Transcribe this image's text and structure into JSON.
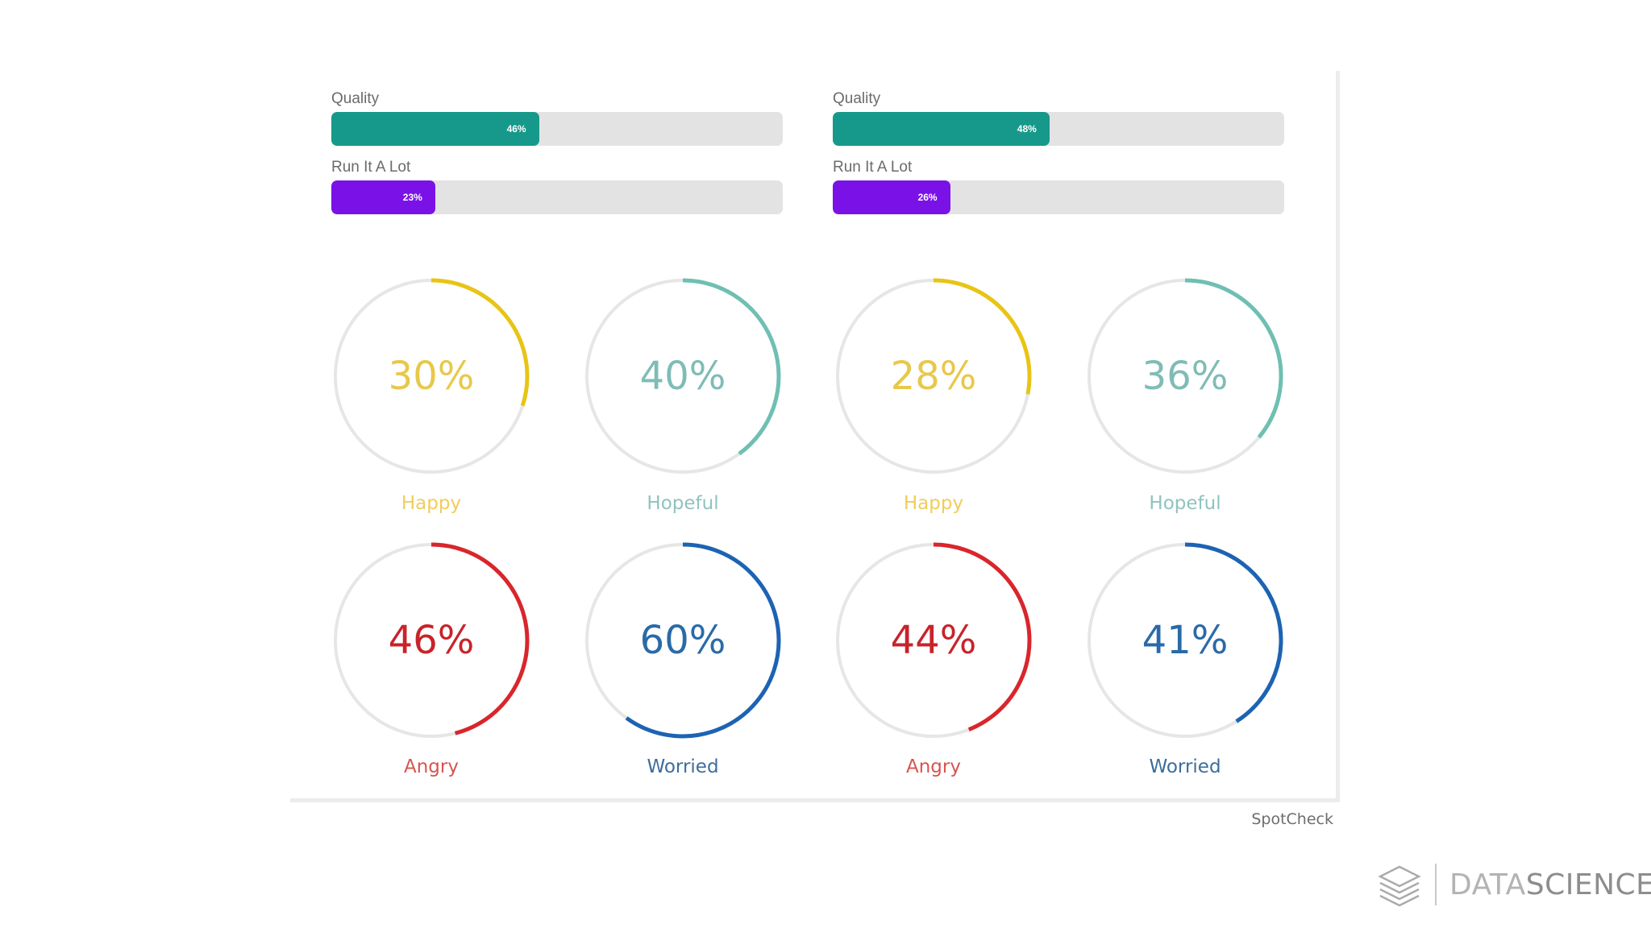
{
  "chart_data": [
    {
      "type": "bar",
      "title": "Quality",
      "value": 46,
      "label": "46%",
      "color": "#16998a"
    },
    {
      "type": "bar",
      "title": "Run It A Lot",
      "value": 23,
      "label": "23%",
      "color": "#7a12e8"
    },
    {
      "type": "bar",
      "title": "Quality",
      "value": 48,
      "label": "48%",
      "color": "#16998a"
    },
    {
      "type": "bar",
      "title": "Run It A Lot",
      "value": 26,
      "label": "26%",
      "color": "#7a12e8"
    },
    {
      "type": "pie",
      "title": "Happy",
      "value": 30,
      "label": "30%",
      "color": "#e8c416"
    },
    {
      "type": "pie",
      "title": "Hopeful",
      "value": 40,
      "label": "40%",
      "color": "#6fbfb3"
    },
    {
      "type": "pie",
      "title": "Happy",
      "value": 28,
      "label": "28%",
      "color": "#e8c416"
    },
    {
      "type": "pie",
      "title": "Hopeful",
      "value": 36,
      "label": "36%",
      "color": "#6fbfb3"
    },
    {
      "type": "pie",
      "title": "Angry",
      "value": 46,
      "label": "46%",
      "color": "#d8262c"
    },
    {
      "type": "pie",
      "title": "Worried",
      "value": 60,
      "label": "60%",
      "color": "#1d63b3"
    },
    {
      "type": "pie",
      "title": "Angry",
      "value": 44,
      "label": "44%",
      "color": "#d8262c"
    },
    {
      "type": "pie",
      "title": "Worried",
      "value": 41,
      "label": "41%",
      "color": "#1d63b3"
    }
  ],
  "colors": {
    "track": "#e3e3e3",
    "ring_track": "#e6e6e6",
    "happy_label": "#f0cd5a",
    "hopeful_label": "#8fc3c0",
    "angry_label": "#d8544f",
    "worried_label": "#3c6d9c",
    "happy_value": "#e8c84a",
    "hopeful_value": "#7fbcb6",
    "angry_value": "#c8232b",
    "worried_value": "#2a6aa8"
  },
  "source": "SpotCheck",
  "brand": {
    "light": "DATA",
    "dark": "SCIENCE",
    "icon": "layered-diamond-icon"
  }
}
